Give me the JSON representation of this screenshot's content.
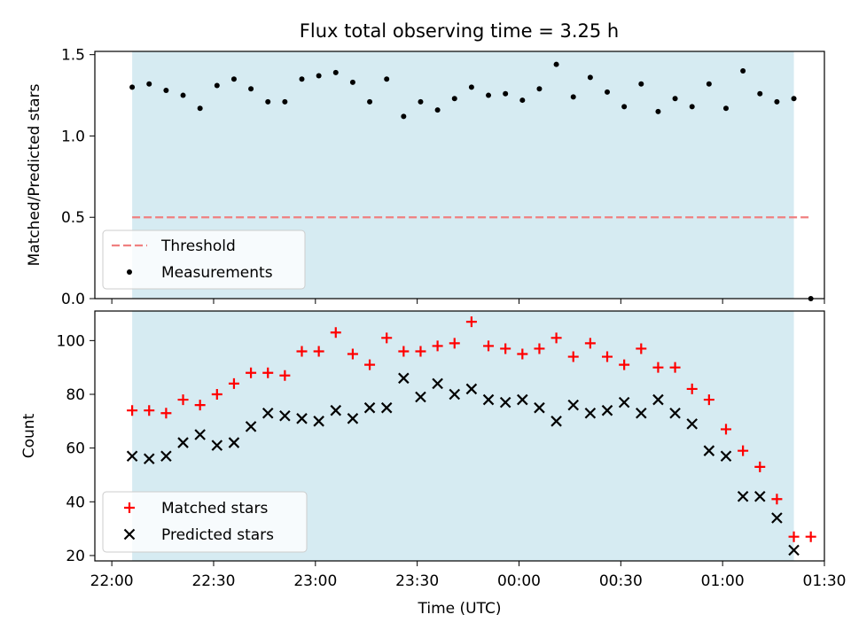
{
  "title": "Flux total observing time = 3.25 h",
  "colors": {
    "shade": "#add8e6",
    "threshold": "#f08080",
    "measurement": "#000000",
    "matched": "#ff0000",
    "predicted": "#000000"
  },
  "chart_data": [
    {
      "type": "scatter",
      "ylabel": "Matched/Predicted stars",
      "ylim": [
        0,
        1.52
      ],
      "yticks": [
        0.0,
        0.5,
        1.0,
        1.5
      ],
      "ytick_labels": [
        "0.0",
        "0.5",
        "1.0",
        "1.5"
      ],
      "xlim": [
        1315,
        1530
      ],
      "xticks": [
        1320,
        1350,
        1380,
        1410,
        1440,
        1470,
        1500,
        1530
      ],
      "grid": false,
      "legend_position": "lower-left",
      "shaded_span": [
        1326,
        1521
      ],
      "threshold": {
        "name": "Threshold",
        "y": 0.5,
        "x": [
          1326,
          1526
        ]
      },
      "series": [
        {
          "name": "Measurements",
          "x": [
            1326,
            1331,
            1336,
            1341,
            1346,
            1351,
            1356,
            1361,
            1366,
            1371,
            1376,
            1381,
            1386,
            1391,
            1396,
            1401,
            1406,
            1411,
            1416,
            1421,
            1426,
            1431,
            1436,
            1441,
            1446,
            1451,
            1456,
            1461,
            1466,
            1471,
            1476,
            1481,
            1486,
            1491,
            1496,
            1501,
            1506,
            1511,
            1516,
            1521,
            1526
          ],
          "y": [
            1.3,
            1.32,
            1.28,
            1.25,
            1.17,
            1.31,
            1.35,
            1.29,
            1.21,
            1.21,
            1.35,
            1.37,
            1.39,
            1.33,
            1.21,
            1.35,
            1.12,
            1.21,
            1.16,
            1.23,
            1.3,
            1.25,
            1.26,
            1.22,
            1.29,
            1.44,
            1.24,
            1.36,
            1.27,
            1.18,
            1.32,
            1.15,
            1.23,
            1.18,
            1.32,
            1.17,
            1.4,
            1.26,
            1.21,
            1.23,
            0.0
          ]
        }
      ]
    },
    {
      "type": "scatter",
      "ylabel": "Count",
      "xlabel": "Time (UTC)",
      "ylim": [
        18,
        111
      ],
      "yticks": [
        20,
        40,
        60,
        80,
        100
      ],
      "ytick_labels": [
        "20",
        "40",
        "60",
        "80",
        "100"
      ],
      "xlim": [
        1315,
        1530
      ],
      "xticks": [
        1320,
        1350,
        1380,
        1410,
        1440,
        1470,
        1500,
        1530
      ],
      "xtick_labels": [
        "22:00",
        "22:30",
        "23:00",
        "23:30",
        "00:00",
        "00:30",
        "01:00",
        "01:30"
      ],
      "grid": false,
      "legend_position": "lower-left",
      "shaded_span": [
        1326,
        1521
      ],
      "x": [
        1326,
        1331,
        1336,
        1341,
        1346,
        1351,
        1356,
        1361,
        1366,
        1371,
        1376,
        1381,
        1386,
        1391,
        1396,
        1401,
        1406,
        1411,
        1416,
        1421,
        1426,
        1431,
        1436,
        1441,
        1446,
        1451,
        1456,
        1461,
        1466,
        1471,
        1476,
        1481,
        1486,
        1491,
        1496,
        1501,
        1506,
        1511,
        1516,
        1521,
        1526
      ],
      "series": [
        {
          "name": "Matched stars",
          "marker": "+",
          "values": [
            74,
            74,
            73,
            78,
            76,
            80,
            84,
            88,
            88,
            87,
            96,
            96,
            103,
            95,
            91,
            101,
            96,
            96,
            98,
            99,
            107,
            98,
            97,
            95,
            97,
            101,
            94,
            99,
            94,
            91,
            97,
            90,
            90,
            82,
            78,
            67,
            59,
            53,
            41,
            27,
            27
          ]
        },
        {
          "name": "Predicted stars",
          "marker": "x",
          "values": [
            57,
            56,
            57,
            62,
            65,
            61,
            62,
            68,
            73,
            72,
            71,
            70,
            74,
            71,
            75,
            75,
            86,
            79,
            84,
            80,
            82,
            78,
            77,
            78,
            75,
            70,
            76,
            73,
            74,
            77,
            73,
            78,
            73,
            69,
            59,
            57,
            42,
            42,
            34,
            22,
            null
          ]
        }
      ]
    }
  ]
}
